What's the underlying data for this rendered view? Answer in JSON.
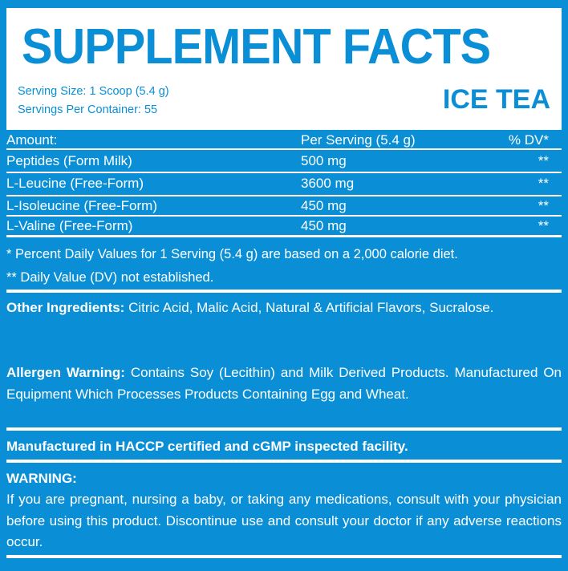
{
  "header": {
    "title": "SUPPLEMENT FACTS",
    "serving_size": "Serving Size: 1 Scoop (5.4 g)",
    "servings_per_container": "Servings Per Container: 55",
    "flavor": "ICE TEA"
  },
  "table": {
    "headers": [
      "Amount:",
      "Per Serving (5.4 g)",
      "% DV*"
    ],
    "rows": [
      [
        "Peptides (Form Milk)",
        "500 mg",
        "**"
      ],
      [
        "L-Leucine (Free-Form)",
        "3600 mg",
        "**"
      ],
      [
        "L-Isoleucine (Free-Form)",
        "450 mg",
        "**"
      ],
      [
        "L-Valine (Free-Form)",
        "450 mg",
        "**"
      ]
    ]
  },
  "footnotes": [
    "* Percent Daily Values for 1 Serving (5.4 g) are based on a 2,000 calorie diet.",
    "** Daily Value (DV) not established."
  ],
  "other_ingredients": {
    "label": "Other Ingredients:",
    "text": " Citric Acid, Malic Acid, Natural & Artificial Flavors, Sucralose."
  },
  "allergen": {
    "label": "Allergen Warning:",
    "text": " Contains Soy (Lecithin) and Milk Derived Products. Manufactured On Equipment Which Processes Products Containing Egg and Wheat."
  },
  "facility": "Manufactured in HACCP certified and cGMP inspected facility.",
  "warning": {
    "label": "WARNING:",
    "text": "If you are pregnant, nursing a baby, or taking any medications, consult with your physician before using this product. Discontinue use and consult your doctor if any adverse reactions occur."
  },
  "colors": {
    "brand_blue": "#0a8fd6",
    "white": "#ffffff"
  }
}
